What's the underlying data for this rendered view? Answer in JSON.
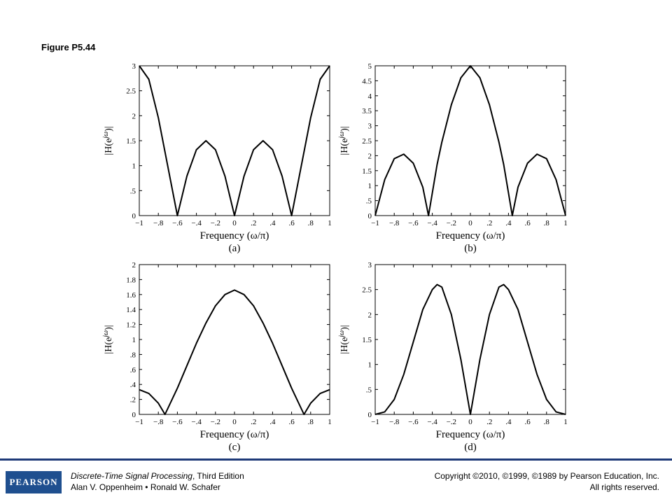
{
  "figure_title": "Figure P5.44",
  "chart_data": [
    {
      "type": "line",
      "panel_label": "(a)",
      "xlabel": "Frequency (ω/π)",
      "ylabel": "|H(e^{jω})|",
      "xlim": [
        -1,
        1
      ],
      "ylim": [
        0,
        3
      ],
      "xticks": [
        -1,
        -0.8,
        -0.6,
        -0.4,
        -0.2,
        0,
        0.2,
        0.4,
        0.6,
        0.8,
        1
      ],
      "yticks": [
        0,
        0.5,
        1,
        1.5,
        2,
        2.5,
        3
      ],
      "x": [
        -1,
        -0.9,
        -0.8,
        -0.7,
        -0.6,
        -0.5,
        -0.4,
        -0.3,
        -0.2,
        -0.1,
        0,
        0.1,
        0.2,
        0.3,
        0.4,
        0.5,
        0.6,
        0.7,
        0.8,
        0.9,
        1
      ],
      "values": [
        3,
        2.73,
        1.96,
        0.98,
        0,
        0.79,
        1.32,
        1.5,
        1.32,
        0.79,
        0,
        0.79,
        1.32,
        1.5,
        1.32,
        0.79,
        0,
        0.98,
        1.96,
        2.73,
        3
      ]
    },
    {
      "type": "line",
      "panel_label": "(b)",
      "xlabel": "Frequency (ω/π)",
      "ylabel": "|H(e^{jω})|",
      "xlim": [
        -1,
        1
      ],
      "ylim": [
        0,
        5
      ],
      "xticks": [
        -1,
        -0.8,
        -0.6,
        -0.4,
        -0.2,
        0,
        0.2,
        0.4,
        0.6,
        0.8,
        1
      ],
      "yticks": [
        0,
        0.5,
        1,
        1.5,
        2,
        2.5,
        3,
        3.5,
        4,
        4.5,
        5
      ],
      "x": [
        -1,
        -0.9,
        -0.8,
        -0.7,
        -0.6,
        -0.5,
        -0.44,
        -0.35,
        -0.3,
        -0.2,
        -0.1,
        0,
        0.1,
        0.2,
        0.3,
        0.35,
        0.44,
        0.5,
        0.6,
        0.7,
        0.8,
        0.9,
        1
      ],
      "values": [
        0,
        1.2,
        1.9,
        2.05,
        1.75,
        0.95,
        0,
        1.7,
        2.45,
        3.7,
        4.6,
        5,
        4.6,
        3.7,
        2.45,
        1.7,
        0,
        0.95,
        1.75,
        2.05,
        1.9,
        1.2,
        0
      ]
    },
    {
      "type": "line",
      "panel_label": "(c)",
      "xlabel": "Frequency (ω/π)",
      "ylabel": "|H(e^{jω})|",
      "xlim": [
        -1,
        1
      ],
      "ylim": [
        0,
        2
      ],
      "xticks": [
        -1,
        -0.8,
        -0.6,
        -0.4,
        -0.2,
        0,
        0.2,
        0.4,
        0.6,
        0.8,
        1
      ],
      "yticks": [
        0,
        0.2,
        0.4,
        0.6,
        0.8,
        1,
        1.2,
        1.4,
        1.6,
        1.8,
        2
      ],
      "x": [
        -1,
        -0.9,
        -0.8,
        -0.73,
        -0.6,
        -0.5,
        -0.4,
        -0.3,
        -0.2,
        -0.1,
        0,
        0.1,
        0.2,
        0.3,
        0.4,
        0.5,
        0.6,
        0.73,
        0.8,
        0.9,
        1
      ],
      "values": [
        0.33,
        0.28,
        0.15,
        0,
        0.35,
        0.65,
        0.95,
        1.22,
        1.45,
        1.6,
        1.66,
        1.6,
        1.45,
        1.22,
        0.95,
        0.65,
        0.35,
        0,
        0.15,
        0.28,
        0.33
      ]
    },
    {
      "type": "line",
      "panel_label": "(d)",
      "xlabel": "Frequency (ω/π)",
      "ylabel": "|H(e^{jω})|",
      "xlim": [
        -1,
        1
      ],
      "ylim": [
        0,
        3
      ],
      "xticks": [
        -1,
        -0.8,
        -0.6,
        -0.4,
        -0.2,
        0,
        0.2,
        0.4,
        0.6,
        0.8,
        1
      ],
      "yticks": [
        0,
        0.5,
        1,
        1.5,
        2,
        2.5,
        3
      ],
      "x": [
        -1,
        -0.9,
        -0.8,
        -0.7,
        -0.6,
        -0.5,
        -0.4,
        -0.35,
        -0.3,
        -0.2,
        -0.1,
        0,
        0.1,
        0.2,
        0.3,
        0.35,
        0.4,
        0.5,
        0.6,
        0.7,
        0.8,
        0.9,
        1
      ],
      "values": [
        0,
        0.05,
        0.3,
        0.8,
        1.45,
        2.1,
        2.5,
        2.6,
        2.55,
        2.0,
        1.1,
        0,
        1.1,
        2.0,
        2.55,
        2.6,
        2.5,
        2.1,
        1.45,
        0.8,
        0.3,
        0.05,
        0
      ]
    }
  ],
  "footer": {
    "logo_text": "PEARSON",
    "book_title": "Discrete-Time Signal Processing",
    "edition": ", Third Edition",
    "authors": "Alan V. Oppenheim • Ronald W. Schafer",
    "copyright": "Copyright ©2010, ©1999, ©1989 by Pearson Education, Inc.",
    "rights": "All rights reserved.",
    "rule_color": "#1e3a78",
    "logo_color": "#1f4f8f"
  }
}
